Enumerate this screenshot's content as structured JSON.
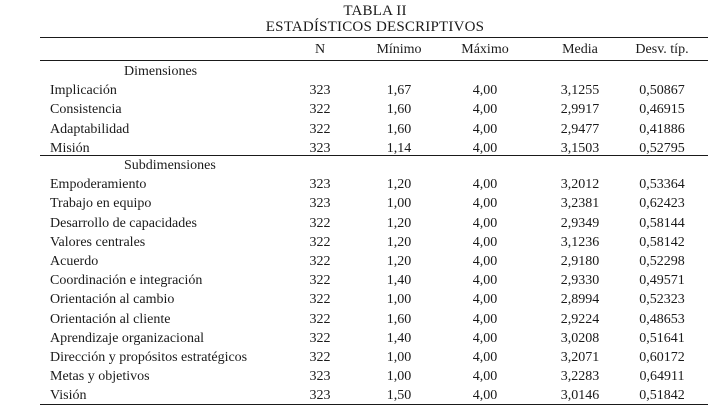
{
  "table": {
    "title": "TABLA II",
    "subtitle": "ESTADÍSTICOS DESCRIPTIVOS",
    "columns": [
      "",
      "N",
      "Mínimo",
      "Máximo",
      "Media",
      "Desv. típ."
    ],
    "sections": [
      {
        "label": "Dimensiones",
        "rows": [
          {
            "name": "Implicación",
            "n": "323",
            "min": "1,67",
            "max": "4,00",
            "mean": "3,1255",
            "sd": "0,50867"
          },
          {
            "name": "Consistencia",
            "n": "322",
            "min": "1,60",
            "max": "4,00",
            "mean": "2,9917",
            "sd": "0,46915"
          },
          {
            "name": "Adaptabilidad",
            "n": "322",
            "min": "1,60",
            "max": "4,00",
            "mean": "2,9477",
            "sd": "0,41886"
          },
          {
            "name": "Misión",
            "n": "323",
            "min": "1,14",
            "max": "4,00",
            "mean": "3,1503",
            "sd": "0,52795"
          }
        ]
      },
      {
        "label": "Subdimensiones",
        "rows": [
          {
            "name": "Empoderamiento",
            "n": "323",
            "min": "1,20",
            "max": "4,00",
            "mean": "3,2012",
            "sd": "0,53364"
          },
          {
            "name": "Trabajo en equipo",
            "n": "323",
            "min": "1,00",
            "max": "4,00",
            "mean": "3,2381",
            "sd": "0,62423"
          },
          {
            "name": "Desarrollo de capacidades",
            "n": "322",
            "min": "1,20",
            "max": "4,00",
            "mean": "2,9349",
            "sd": "0,58144"
          },
          {
            "name": "Valores centrales",
            "n": "322",
            "min": "1,20",
            "max": "4,00",
            "mean": "3,1236",
            "sd": "0,58142"
          },
          {
            "name": "Acuerdo",
            "n": "322",
            "min": "1,20",
            "max": "4,00",
            "mean": "2,9180",
            "sd": "0,52298"
          },
          {
            "name": "Coordinación e integración",
            "n": "322",
            "min": "1,40",
            "max": "4,00",
            "mean": "2,9330",
            "sd": "0,49571"
          },
          {
            "name": "Orientación al cambio",
            "n": "322",
            "min": "1,00",
            "max": "4,00",
            "mean": "2,8994",
            "sd": "0,52323"
          },
          {
            "name": "Orientación al cliente",
            "n": "322",
            "min": "1,60",
            "max": "4,00",
            "mean": "2,9224",
            "sd": "0,48653"
          },
          {
            "name": "Aprendizaje organizacional",
            "n": "322",
            "min": "1,40",
            "max": "4,00",
            "mean": "3,0208",
            "sd": "0,51641"
          },
          {
            "name": "Dirección y propósitos estratégicos",
            "n": "322",
            "min": "1,00",
            "max": "4,00",
            "mean": "3,2071",
            "sd": "0,60172"
          },
          {
            "name": "Metas y objetivos",
            "n": "323",
            "min": "1,00",
            "max": "4,00",
            "mean": "3,2283",
            "sd": "0,64911"
          },
          {
            "name": "Visión",
            "n": "323",
            "min": "1,50",
            "max": "4,00",
            "mean": "3,0146",
            "sd": "0,51842"
          }
        ]
      }
    ]
  }
}
